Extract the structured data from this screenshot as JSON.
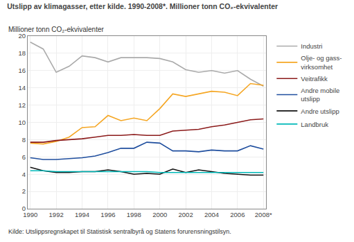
{
  "chart_data": {
    "type": "line",
    "title": "Utslipp av klimagasser, etter kilde. 1990-2008*. Millioner tonn CO₂-ekvivalenter",
    "ylabel": "Millioner tonn CO₂-ekvivalenter",
    "annotations": [
      "Kilde: Utslippsregnskapet til Statistisk sentralbyrå og Statens forurensningstilsyn."
    ],
    "x": [
      1990,
      1991,
      1992,
      1993,
      1994,
      1995,
      1996,
      1997,
      1998,
      1999,
      2000,
      2001,
      2002,
      2003,
      2004,
      2005,
      2006,
      2007,
      2008
    ],
    "series": [
      {
        "name": "Industri",
        "color": "#aaaaaa",
        "values": [
          19.3,
          18.5,
          15.8,
          16.5,
          17.7,
          17.5,
          17.0,
          17.5,
          17.5,
          17.5,
          17.4,
          17.0,
          16.1,
          15.8,
          16.0,
          15.7,
          16.0,
          15.0,
          14.2
        ]
      },
      {
        "name": "Olje- og gass-\nvirksomhet",
        "color": "#f5a623",
        "values": [
          7.6,
          7.5,
          7.8,
          8.3,
          9.4,
          9.5,
          10.8,
          10.2,
          10.5,
          10.2,
          11.6,
          13.3,
          13.0,
          13.3,
          13.6,
          13.5,
          13.1,
          14.5,
          14.3
        ]
      },
      {
        "name": "Veitrafikk",
        "color": "#8b1a1a",
        "values": [
          7.7,
          7.7,
          7.9,
          8.0,
          8.1,
          8.3,
          8.5,
          8.5,
          8.6,
          8.5,
          8.5,
          9.0,
          9.1,
          9.2,
          9.5,
          9.7,
          10.0,
          10.3,
          10.4
        ]
      },
      {
        "name": "Andre mobile\nutslipp",
        "color": "#1f4e9e",
        "values": [
          5.9,
          5.7,
          5.7,
          5.8,
          5.9,
          6.1,
          6.5,
          7.0,
          7.0,
          7.7,
          7.6,
          6.7,
          6.7,
          6.6,
          6.8,
          6.7,
          6.7,
          7.3,
          6.9
        ]
      },
      {
        "name": "Andre utslipp",
        "color": "#111111",
        "values": [
          4.8,
          4.4,
          4.2,
          4.2,
          4.3,
          4.3,
          4.5,
          4.3,
          4.0,
          4.1,
          4.0,
          4.6,
          4.2,
          4.5,
          4.3,
          4.1,
          4.0,
          3.9,
          3.9
        ]
      },
      {
        "name": "Landbruk",
        "color": "#00b8b8",
        "values": [
          4.4,
          4.4,
          4.3,
          4.3,
          4.3,
          4.3,
          4.3,
          4.3,
          4.3,
          4.3,
          4.2,
          4.2,
          4.2,
          4.2,
          4.2,
          4.2,
          4.2,
          4.2,
          4.2
        ]
      }
    ],
    "xlim": [
      1989.8,
      2008.2
    ],
    "xticks": [
      1990,
      1992,
      1994,
      1996,
      1998,
      2000,
      2002,
      2004,
      2006,
      {
        "value": 2008,
        "label": "2008*"
      }
    ],
    "ylim": [
      0,
      20
    ],
    "yticks": [
      0,
      2,
      4,
      6,
      8,
      10,
      12,
      14,
      16,
      18,
      20
    ],
    "grid": true,
    "legend": "right"
  }
}
